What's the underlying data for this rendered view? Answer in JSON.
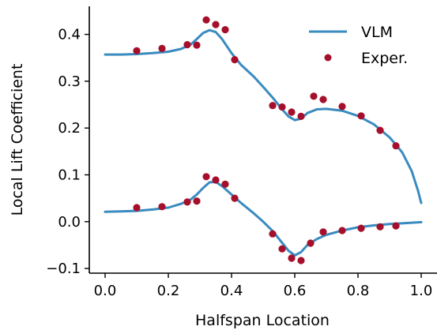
{
  "chart_data": {
    "type": "line",
    "title": "",
    "xlabel": "Halfspan Location",
    "ylabel": "Local Lift Coefficient",
    "xlim": [
      -0.05,
      1.05
    ],
    "ylim": [
      -0.11,
      0.46
    ],
    "xticks": [
      0.0,
      0.2,
      0.4,
      0.6,
      0.8,
      1.0
    ],
    "xtick_labels": [
      "0.0",
      "0.2",
      "0.4",
      "0.6",
      "0.8",
      "1.0"
    ],
    "yticks": [
      -0.1,
      0.0,
      0.1,
      0.2,
      0.3,
      0.4
    ],
    "ytick_labels": [
      "−0.1",
      "0.0",
      "0.1",
      "0.2",
      "0.3",
      "0.4"
    ],
    "grid": false,
    "legend_position": "top-right",
    "colors": {
      "line": "#3a8bbf",
      "points": "#a50f2b"
    },
    "series": [
      {
        "name": "VLM",
        "kind": "line",
        "curves": [
          {
            "x": [
              0.0,
              0.05,
              0.1,
              0.15,
              0.2,
              0.24,
              0.27,
              0.29,
              0.31,
              0.33,
              0.35,
              0.37,
              0.4,
              0.43,
              0.47,
              0.5,
              0.53,
              0.56,
              0.58,
              0.6,
              0.62,
              0.64,
              0.67,
              0.7,
              0.75,
              0.8,
              0.85,
              0.9,
              0.94,
              0.97,
              0.99,
              1.0
            ],
            "y": [
              0.357,
              0.357,
              0.358,
              0.36,
              0.363,
              0.369,
              0.378,
              0.39,
              0.403,
              0.409,
              0.405,
              0.39,
              0.36,
              0.335,
              0.31,
              0.288,
              0.265,
              0.24,
              0.225,
              0.217,
              0.22,
              0.232,
              0.24,
              0.241,
              0.237,
              0.226,
              0.208,
              0.18,
              0.148,
              0.108,
              0.066,
              0.04
            ]
          },
          {
            "x": [
              0.0,
              0.05,
              0.1,
              0.15,
              0.2,
              0.24,
              0.27,
              0.29,
              0.31,
              0.33,
              0.35,
              0.37,
              0.4,
              0.43,
              0.47,
              0.5,
              0.53,
              0.56,
              0.58,
              0.6,
              0.62,
              0.64,
              0.67,
              0.7,
              0.75,
              0.8,
              0.85,
              0.9,
              0.95,
              1.0
            ],
            "y": [
              0.021,
              0.022,
              0.023,
              0.026,
              0.03,
              0.038,
              0.047,
              0.058,
              0.072,
              0.084,
              0.085,
              0.076,
              0.058,
              0.04,
              0.018,
              0.0,
              -0.02,
              -0.045,
              -0.062,
              -0.072,
              -0.065,
              -0.05,
              -0.037,
              -0.028,
              -0.019,
              -0.012,
              -0.008,
              -0.005,
              -0.003,
              -0.001
            ]
          }
        ]
      },
      {
        "name": "Exper.",
        "kind": "scatter",
        "points": [
          {
            "x": 0.1,
            "y": 0.365
          },
          {
            "x": 0.18,
            "y": 0.37
          },
          {
            "x": 0.26,
            "y": 0.378
          },
          {
            "x": 0.29,
            "y": 0.377
          },
          {
            "x": 0.32,
            "y": 0.431
          },
          {
            "x": 0.35,
            "y": 0.421
          },
          {
            "x": 0.38,
            "y": 0.41
          },
          {
            "x": 0.41,
            "y": 0.346
          },
          {
            "x": 0.53,
            "y": 0.248
          },
          {
            "x": 0.56,
            "y": 0.245
          },
          {
            "x": 0.59,
            "y": 0.234
          },
          {
            "x": 0.62,
            "y": 0.225
          },
          {
            "x": 0.66,
            "y": 0.268
          },
          {
            "x": 0.69,
            "y": 0.261
          },
          {
            "x": 0.75,
            "y": 0.246
          },
          {
            "x": 0.81,
            "y": 0.226
          },
          {
            "x": 0.87,
            "y": 0.195
          },
          {
            "x": 0.92,
            "y": 0.162
          },
          {
            "x": 0.1,
            "y": 0.03
          },
          {
            "x": 0.18,
            "y": 0.032
          },
          {
            "x": 0.26,
            "y": 0.042
          },
          {
            "x": 0.29,
            "y": 0.044
          },
          {
            "x": 0.32,
            "y": 0.096
          },
          {
            "x": 0.35,
            "y": 0.089
          },
          {
            "x": 0.38,
            "y": 0.08
          },
          {
            "x": 0.41,
            "y": 0.05
          },
          {
            "x": 0.53,
            "y": -0.026
          },
          {
            "x": 0.56,
            "y": -0.058
          },
          {
            "x": 0.59,
            "y": -0.078
          },
          {
            "x": 0.62,
            "y": -0.083
          },
          {
            "x": 0.65,
            "y": -0.046
          },
          {
            "x": 0.69,
            "y": -0.022
          },
          {
            "x": 0.75,
            "y": -0.019
          },
          {
            "x": 0.81,
            "y": -0.014
          },
          {
            "x": 0.87,
            "y": -0.011
          },
          {
            "x": 0.92,
            "y": -0.009
          }
        ]
      }
    ]
  }
}
